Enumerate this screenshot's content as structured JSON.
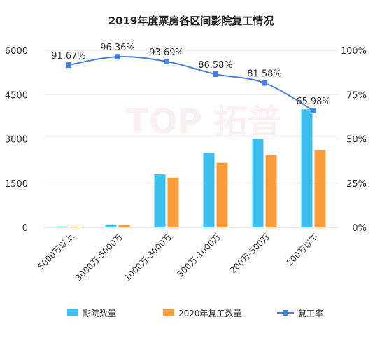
{
  "chart_data": {
    "type": "bar",
    "title": "2019年度票房各区间影院复工情况",
    "categories": [
      "5000万以上",
      "3000万-5000万",
      "1000万-3000万",
      "500万-1000万",
      "200万-500万",
      "200万以下"
    ],
    "series": [
      {
        "name": "影院数量",
        "type": "bar",
        "axis": "left",
        "color": "#3dbfef",
        "values": [
          30,
          100,
          1800,
          2530,
          3000,
          4000
        ]
      },
      {
        "name": "2020年复工数量",
        "type": "bar",
        "axis": "left",
        "color": "#fb9b3a",
        "values": [
          28,
          96,
          1680,
          2190,
          2450,
          2620
        ]
      },
      {
        "name": "复工率",
        "type": "line",
        "axis": "right",
        "color": "#4a7fd8",
        "values": [
          91.67,
          96.36,
          93.69,
          86.58,
          81.58,
          65.98
        ]
      }
    ],
    "point_labels": [
      "91.67%",
      "96.36%",
      "93.69%",
      "86.58%",
      "81.58%",
      "65.98%"
    ],
    "y_left": {
      "min": 0,
      "max": 6000,
      "ticks": [
        "0",
        "1500",
        "3000",
        "4500",
        "6000"
      ]
    },
    "y_right": {
      "min": 0,
      "max": 100,
      "ticks": [
        "0%",
        "25%",
        "50%",
        "75%",
        "100%"
      ]
    },
    "grid": true,
    "legend": "bottom"
  },
  "watermark": {
    "text": "TOP 拓普",
    "opacity": 0.35
  }
}
